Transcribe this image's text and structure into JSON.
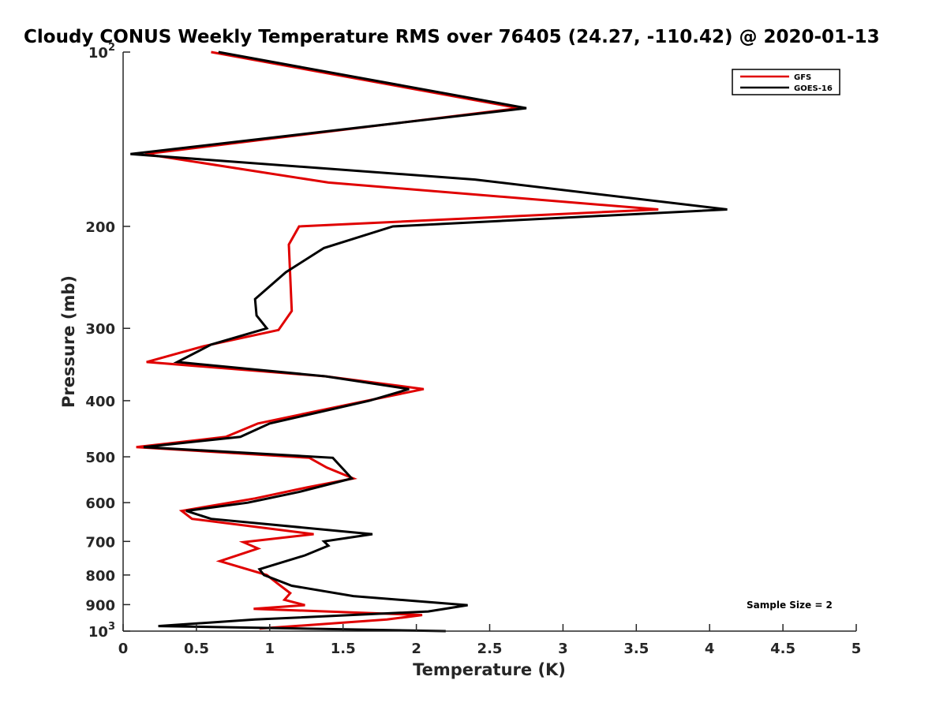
{
  "chart_data": {
    "type": "line",
    "title": "Cloudy CONUS Weekly Temperature RMS over 76405 (24.27, -110.42) @ 2020-01-13",
    "xlabel": "Temperature (K)",
    "ylabel": "Pressure (mb)",
    "xlim": [
      0,
      5
    ],
    "ylim": [
      100,
      1000
    ],
    "y_scale": "log",
    "y_reversed": true,
    "x_ticks": [
      "0",
      "0.5",
      "1",
      "1.5",
      "2",
      "2.5",
      "3",
      "3.5",
      "4",
      "4.5",
      "5"
    ],
    "y_ticks": [
      {
        "value": 100,
        "label": "10",
        "sup": "2"
      },
      {
        "value": 200,
        "label": "200"
      },
      {
        "value": 300,
        "label": "300"
      },
      {
        "value": 400,
        "label": "400"
      },
      {
        "value": 500,
        "label": "500"
      },
      {
        "value": 600,
        "label": "600"
      },
      {
        "value": 700,
        "label": "700"
      },
      {
        "value": 800,
        "label": "800"
      },
      {
        "value": 900,
        "label": "900"
      },
      {
        "value": 1000,
        "label": "10",
        "sup": "3"
      }
    ],
    "legend_position": "top-right",
    "grid": false,
    "annotation": "Sample Size = 2",
    "series": [
      {
        "name": "GFS",
        "color": "#e00000",
        "points": [
          [
            0.6,
            100
          ],
          [
            2.7,
            125
          ],
          [
            0.15,
            150
          ],
          [
            1.4,
            168
          ],
          [
            3.65,
            187
          ],
          [
            1.2,
            200
          ],
          [
            1.13,
            215
          ],
          [
            1.15,
            280
          ],
          [
            1.06,
            302
          ],
          [
            0.55,
            322
          ],
          [
            0.16,
            343
          ],
          [
            1.38,
            363
          ],
          [
            2.05,
            382
          ],
          [
            1.5,
            408
          ],
          [
            0.92,
            438
          ],
          [
            0.7,
            462
          ],
          [
            0.09,
            481
          ],
          [
            1.27,
            502
          ],
          [
            1.39,
            522
          ],
          [
            1.57,
            545
          ],
          [
            1.25,
            565
          ],
          [
            0.9,
            590
          ],
          [
            0.4,
            620
          ],
          [
            0.47,
            640
          ],
          [
            1.3,
            680
          ],
          [
            0.82,
            702
          ],
          [
            0.92,
            720
          ],
          [
            0.66,
            757
          ],
          [
            0.98,
            800
          ],
          [
            1.06,
            830
          ],
          [
            1.14,
            860
          ],
          [
            1.1,
            883
          ],
          [
            1.24,
            902
          ],
          [
            0.89,
            915
          ],
          [
            2.04,
            938
          ],
          [
            1.8,
            955
          ],
          [
            0.93,
            990
          ]
        ]
      },
      {
        "name": "GOES-16",
        "color": "#000000",
        "points": [
          [
            0.65,
            100
          ],
          [
            2.75,
            125
          ],
          [
            0.05,
            150
          ],
          [
            2.4,
            166
          ],
          [
            4.12,
            187
          ],
          [
            1.84,
            200
          ],
          [
            1.37,
            218
          ],
          [
            1.11,
            240
          ],
          [
            0.9,
            267
          ],
          [
            0.91,
            285
          ],
          [
            0.98,
            300
          ],
          [
            0.6,
            320
          ],
          [
            0.37,
            343
          ],
          [
            1.38,
            363
          ],
          [
            1.95,
            382
          ],
          [
            1.68,
            400
          ],
          [
            1.0,
            438
          ],
          [
            0.8,
            462
          ],
          [
            0.14,
            481
          ],
          [
            1.43,
            502
          ],
          [
            1.56,
            545
          ],
          [
            1.2,
            575
          ],
          [
            0.85,
            600
          ],
          [
            0.43,
            620
          ],
          [
            0.6,
            640
          ],
          [
            1.7,
            680
          ],
          [
            1.37,
            700
          ],
          [
            1.4,
            712
          ],
          [
            1.24,
            740
          ],
          [
            0.93,
            782
          ],
          [
            0.96,
            800
          ],
          [
            1.15,
            835
          ],
          [
            1.57,
            870
          ],
          [
            2.35,
            902
          ],
          [
            2.08,
            925
          ],
          [
            0.9,
            955
          ],
          [
            0.24,
            980
          ],
          [
            2.2,
            1000
          ]
        ]
      }
    ]
  }
}
